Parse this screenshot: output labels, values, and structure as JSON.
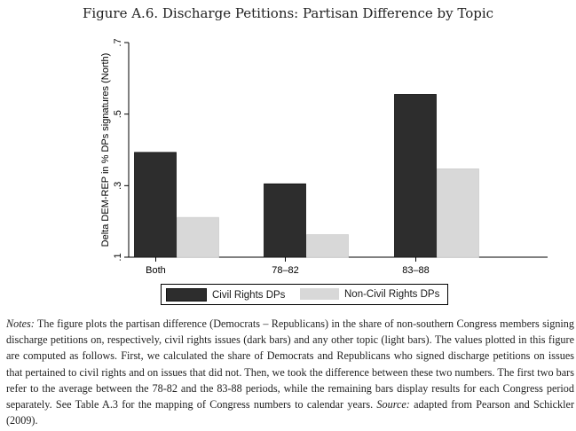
{
  "figure_title": "Figure A.6. Discharge Petitions: Partisan Difference by Topic",
  "chart_data": {
    "type": "bar",
    "title": "",
    "ylabel": "Delta DEM-REP in % DPs signatures (North)",
    "xlabel": "",
    "categories": [
      "Both",
      "78-82",
      "83-88"
    ],
    "series": [
      {
        "name": "Civil Rights DPs",
        "values": [
          0.393,
          0.305,
          0.555
        ],
        "color": "#2d2d2d"
      },
      {
        "name": "Non-Civil Rights DPs",
        "values": [
          0.211,
          0.163,
          0.347
        ],
        "color": "#d8d8d8"
      }
    ],
    "ylim": [
      0.1,
      0.7
    ],
    "yticks": [
      0.1,
      0.3,
      0.5,
      0.7
    ],
    "ytick_labels": [
      ".1",
      ".3",
      ".5",
      ".7"
    ],
    "x_tick_labels": [
      "Both",
      "78–82",
      "83–88"
    ],
    "grid": false,
    "legend_position": "bottom"
  },
  "notes": {
    "label": "Notes:",
    "text": " The figure plots the partisan difference (Democrats – Republicans) in the share of non-southern Congress members signing discharge petitions on, respectively, civil rights issues (dark bars) and any other topic (light bars). The values plotted in this figure are computed as follows. First, we calculated the share of Democrats and Republicans who signed discharge petitions on issues that pertained to civil rights and on issues that did not. Then, we took the difference between these two numbers. The first two bars refer to the average between the 78-82 and the 83-88 periods, while the remaining bars display results for each Congress period separately. See Table A.3 for the mapping of Congress numbers to calendar years.",
    "source_label": "Source:",
    "source_text": " adapted from Pearson and Schickler (2009)."
  }
}
